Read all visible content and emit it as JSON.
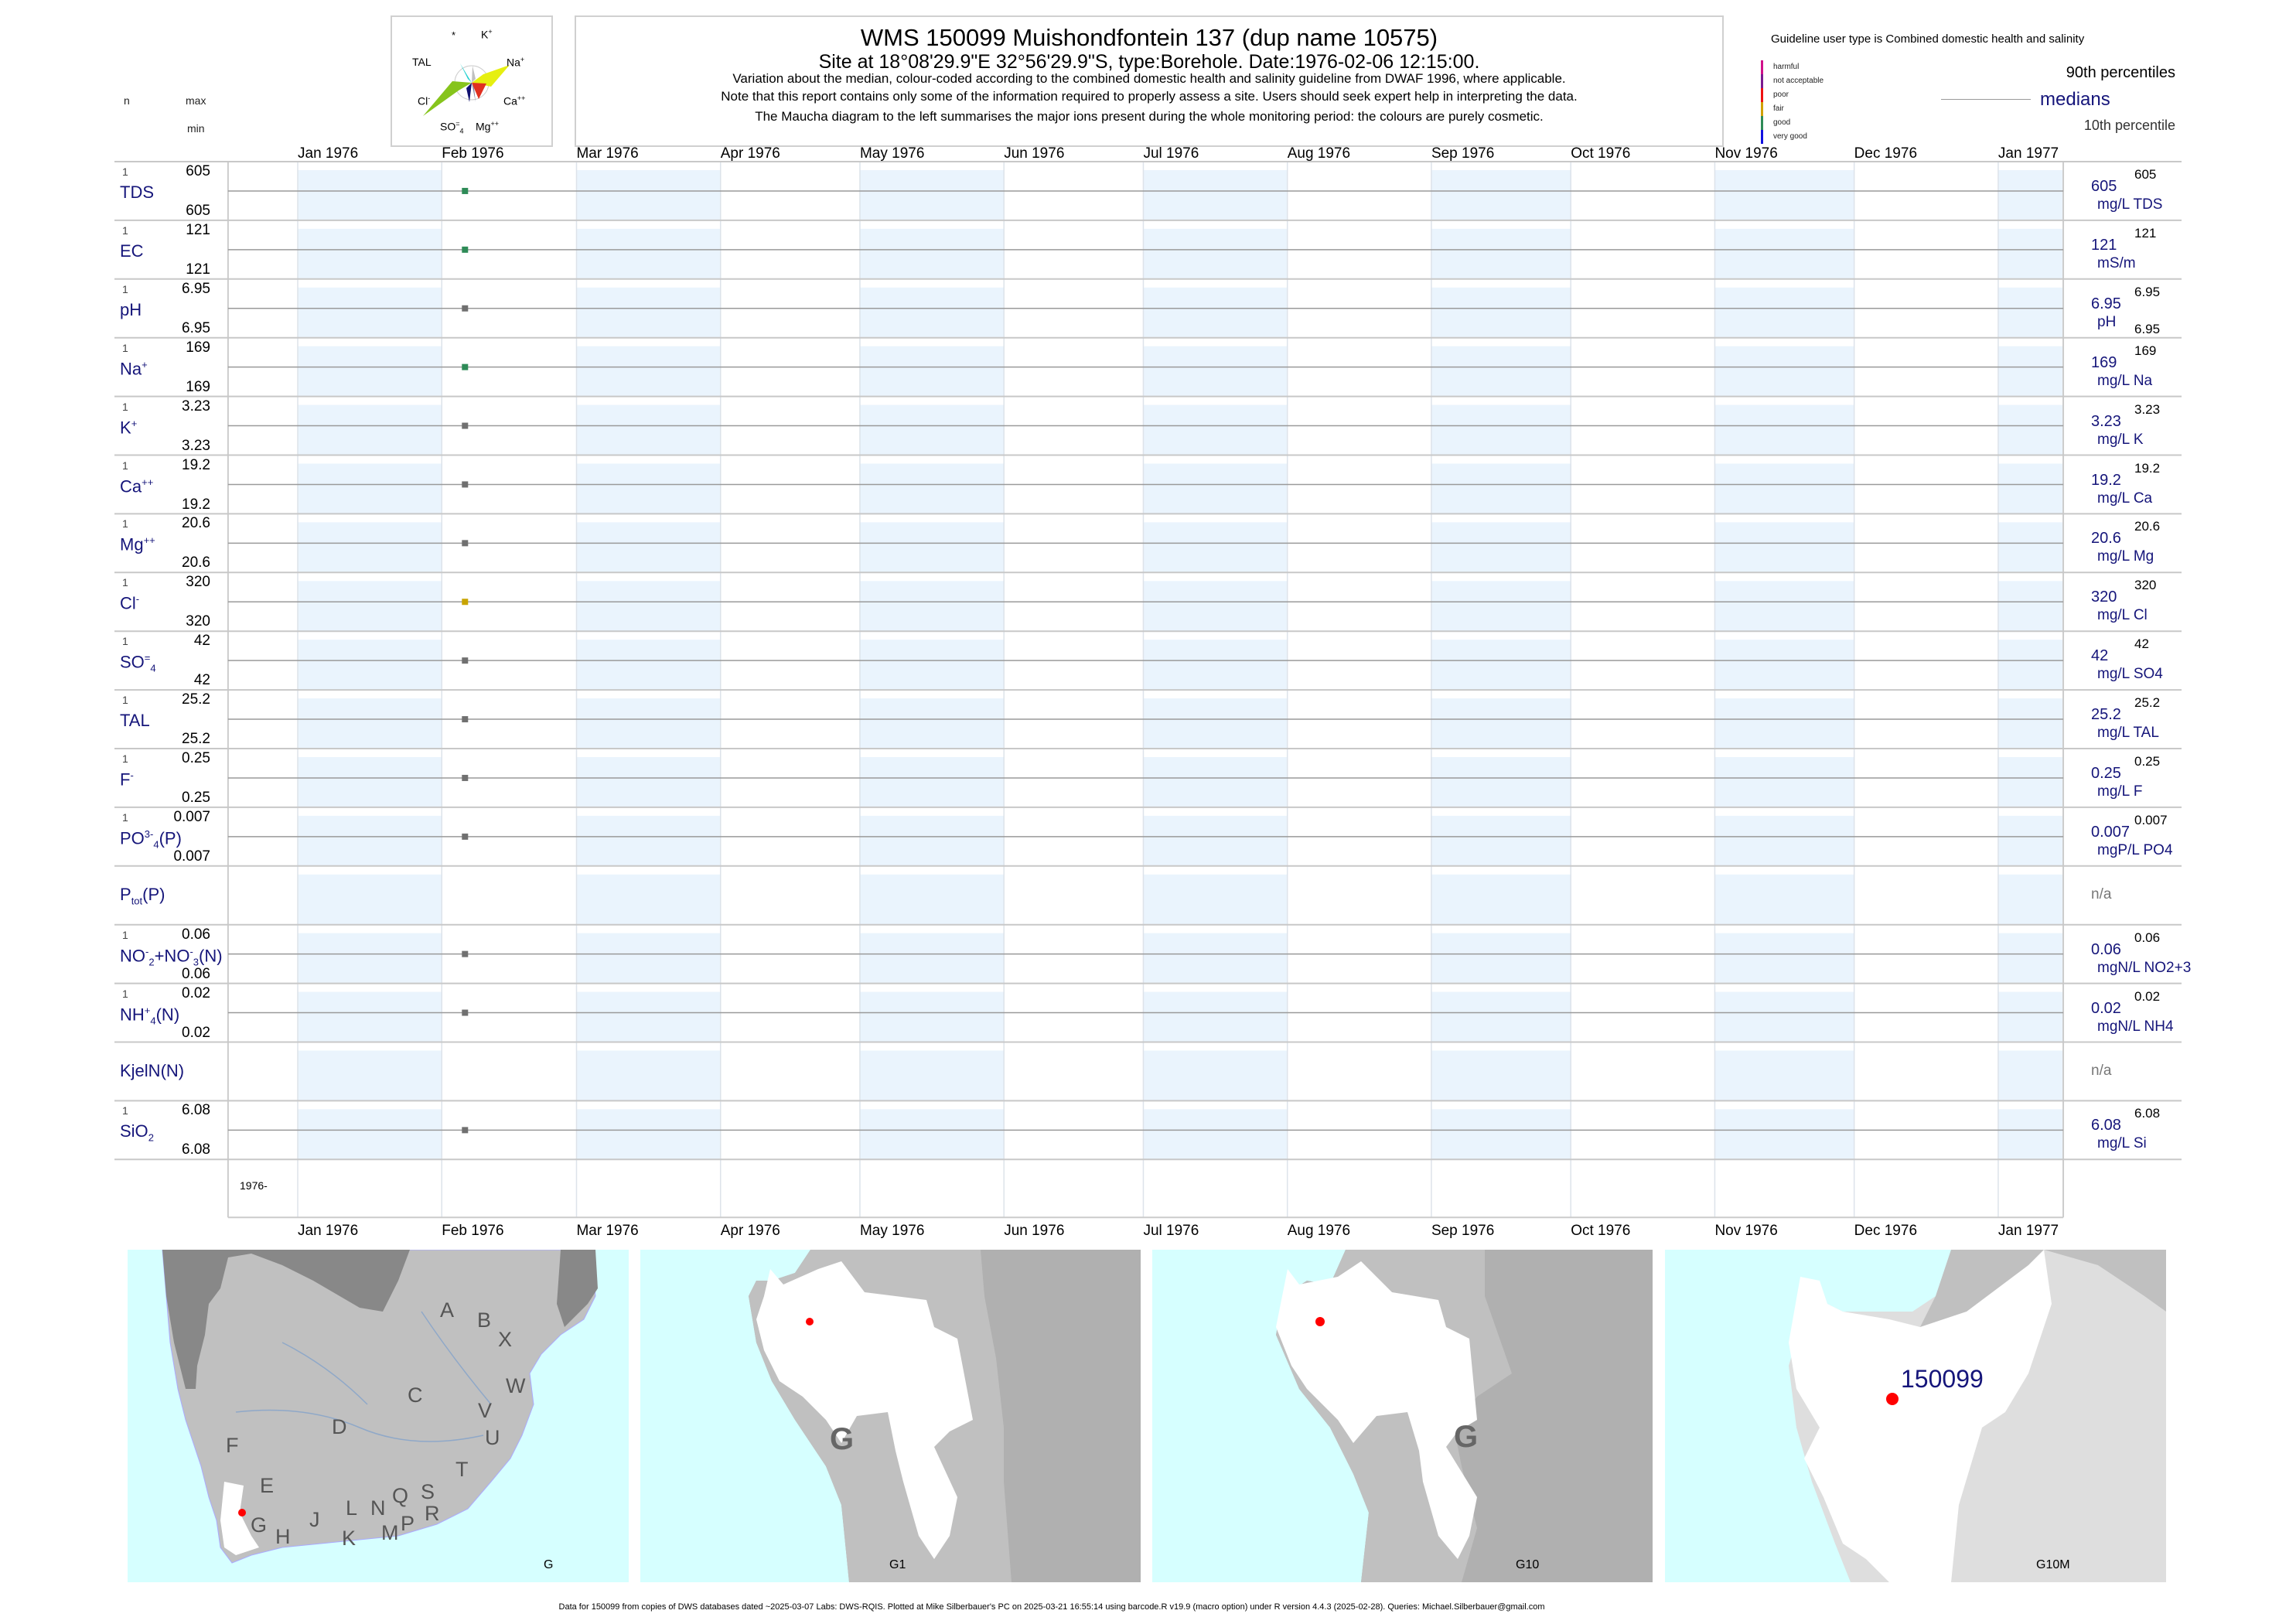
{
  "header": {
    "title": "WMS 150099  Muishondfontein 137 (dup name 10575)",
    "site": "Site at 18°08'29.9\"E 32°56'29.9\"S, type:Borehole. Date:1976-02-06 12:15:00.",
    "note1": "Variation about the median,  colour-coded according to the combined domestic health and salinity guideline from DWAF 1996, where applicable.",
    "note2": "Note that this report contains only some of the information required to properly assess a site. Users should seek expert help in interpreting the data.",
    "note3": "The Maucha diagram to the left summarises the major ions present during the whole monitoring period: the colours are purely cosmetic.",
    "col_n": "n",
    "col_max": "max",
    "col_min": "min"
  },
  "maucha": {
    "labels": {
      "star": "*",
      "k": "K",
      "k_sup": "+",
      "tal": "TAL",
      "na": "Na",
      "na_sup": "+",
      "cl": "Cl",
      "cl_sup": "-",
      "ca": "Ca",
      "ca_sup": "++",
      "so4": "SO",
      "so4_sub": "4",
      "so4_sup": "=",
      "mg": "Mg",
      "mg_sup": "++"
    },
    "colors": {
      "na": "#e6ef10",
      "cl": "#86c41c",
      "ca": "#e03020",
      "so4": "#101070",
      "tal": "#20d0d0",
      "k": "#c0c0c0",
      "mg": "#8080a0"
    }
  },
  "legend": {
    "guideline": "Guideline user type is Combined domestic health and salinity",
    "classes": [
      {
        "label": "harmful",
        "color": "#d0108a"
      },
      {
        "label": "not acceptable",
        "color": "#7a1a90"
      },
      {
        "label": "poor",
        "color": "#ee1010"
      },
      {
        "label": "fair",
        "color": "#d0a000"
      },
      {
        "label": "good",
        "color": "#2e8b57"
      },
      {
        "label": "very good",
        "color": "#1010e0"
      }
    ],
    "p90": "90th percentiles",
    "medians": "medians",
    "p10": "10th percentile"
  },
  "chart_data": {
    "type": "scatter",
    "x_type": "date",
    "xlim": [
      "1975-12-17",
      "1977-01-15"
    ],
    "x_ticks": [
      {
        "date": "1976-01-01",
        "label": "Jan 1976"
      },
      {
        "date": "1976-02-01",
        "label": "Feb 1976"
      },
      {
        "date": "1976-03-01",
        "label": "Mar 1976"
      },
      {
        "date": "1976-04-01",
        "label": "Apr 1976"
      },
      {
        "date": "1976-05-01",
        "label": "May 1976"
      },
      {
        "date": "1976-06-01",
        "label": "Jun 1976"
      },
      {
        "date": "1976-07-01",
        "label": "Jul 1976"
      },
      {
        "date": "1976-08-01",
        "label": "Aug 1976"
      },
      {
        "date": "1976-09-01",
        "label": "Sep 1976"
      },
      {
        "date": "1976-10-01",
        "label": "Oct 1976"
      },
      {
        "date": "1976-11-01",
        "label": "Nov 1976"
      },
      {
        "date": "1976-12-01",
        "label": "Dec 1976"
      },
      {
        "date": "1977-01-01",
        "label": "Jan 1977"
      }
    ],
    "year_label": "1976-",
    "band_color": "#eaf4fd",
    "sample_date": "1976-02-06",
    "rows": [
      {
        "label": [
          {
            "t": "TDS"
          }
        ],
        "n": "1",
        "max": "605",
        "min": "605",
        "median": "605",
        "unit": "mg/L TDS",
        "p90": "605",
        "quality": "good"
      },
      {
        "label": [
          {
            "t": "EC"
          }
        ],
        "n": "1",
        "max": "121",
        "min": "121",
        "median": "121",
        "unit": "mS/m",
        "p90": "121",
        "quality": "good"
      },
      {
        "label": [
          {
            "t": "pH"
          }
        ],
        "n": "1",
        "max": "6.95",
        "min": "6.95",
        "median": "6.95",
        "unit": "pH",
        "p90": "6.95",
        "p10": "6.95",
        "quality": "none"
      },
      {
        "label": [
          {
            "t": "Na"
          },
          {
            "t": "+",
            "sup": true
          }
        ],
        "n": "1",
        "max": "169",
        "min": "169",
        "median": "169",
        "unit": "mg/L Na",
        "p90": "169",
        "quality": "good"
      },
      {
        "label": [
          {
            "t": "K"
          },
          {
            "t": "+",
            "sup": true
          }
        ],
        "n": "1",
        "max": "3.23",
        "min": "3.23",
        "median": "3.23",
        "unit": "mg/L K",
        "p90": "3.23",
        "quality": "none"
      },
      {
        "label": [
          {
            "t": "Ca"
          },
          {
            "t": "++",
            "sup": true
          }
        ],
        "n": "1",
        "max": "19.2",
        "min": "19.2",
        "median": "19.2",
        "unit": "mg/L Ca",
        "p90": "19.2",
        "quality": "none"
      },
      {
        "label": [
          {
            "t": "Mg"
          },
          {
            "t": "++",
            "sup": true
          }
        ],
        "n": "1",
        "max": "20.6",
        "min": "20.6",
        "median": "20.6",
        "unit": "mg/L Mg",
        "p90": "20.6",
        "quality": "none"
      },
      {
        "label": [
          {
            "t": "Cl"
          },
          {
            "t": "-",
            "sup": true
          }
        ],
        "n": "1",
        "max": "320",
        "min": "320",
        "median": "320",
        "unit": "mg/L Cl",
        "p90": "320",
        "quality": "fair"
      },
      {
        "label": [
          {
            "t": "SO"
          },
          {
            "t": "=",
            "sup": true
          },
          {
            "t": "4",
            "sub": true
          }
        ],
        "n": "1",
        "max": "42",
        "min": "42",
        "median": "42",
        "unit": "mg/L SO4",
        "p90": "42",
        "quality": "none"
      },
      {
        "label": [
          {
            "t": "TAL"
          }
        ],
        "n": "1",
        "max": "25.2",
        "min": "25.2",
        "median": "25.2",
        "unit": "mg/L TAL",
        "p90": "25.2",
        "quality": "none"
      },
      {
        "label": [
          {
            "t": "F"
          },
          {
            "t": "-",
            "sup": true
          }
        ],
        "n": "1",
        "max": "0.25",
        "min": "0.25",
        "median": "0.25",
        "unit": "mg/L F",
        "p90": "0.25",
        "quality": "none"
      },
      {
        "label": [
          {
            "t": "PO"
          },
          {
            "t": "3-",
            "sup": true
          },
          {
            "t": "4",
            "sub": true
          },
          {
            "t": "(P)"
          }
        ],
        "n": "1",
        "max": "0.007",
        "min": "0.007",
        "median": "0.007",
        "unit": "mgP/L PO4",
        "p90": "0.007",
        "quality": "none"
      },
      {
        "label": [
          {
            "t": "P"
          },
          {
            "t": "tot",
            "sub": true
          },
          {
            "t": "(P)"
          }
        ],
        "na": "n/a"
      },
      {
        "label": [
          {
            "t": "NO"
          },
          {
            "t": "-",
            "sup": true
          },
          {
            "t": "2",
            "sub": true
          },
          {
            "t": "+NO"
          },
          {
            "t": "-",
            "sup": true
          },
          {
            "t": "3",
            "sub": true
          },
          {
            "t": "(N)"
          }
        ],
        "n": "1",
        "max": "0.06",
        "min": "0.06",
        "median": "0.06",
        "unit": "mgN/L NO2+3",
        "p90": "0.06",
        "quality": "none"
      },
      {
        "label": [
          {
            "t": "NH"
          },
          {
            "t": "+",
            "sup": true
          },
          {
            "t": "4",
            "sub": true
          },
          {
            "t": "(N)"
          }
        ],
        "n": "1",
        "max": "0.02",
        "min": "0.02",
        "median": "0.02",
        "unit": "mgN/L NH4",
        "p90": "0.02",
        "quality": "none"
      },
      {
        "label": [
          {
            "t": "KjelN(N)"
          }
        ],
        "na": "n/a"
      },
      {
        "label": [
          {
            "t": "SiO"
          },
          {
            "t": "2",
            "sub": true
          }
        ],
        "n": "1",
        "max": "6.08",
        "min": "6.08",
        "median": "6.08",
        "unit": "mg/L Si",
        "p90": "6.08",
        "quality": "none"
      }
    ],
    "quality_colors": {
      "good": "#2e8b57",
      "fair": "#c8a400",
      "none": "#707070"
    }
  },
  "maps": [
    {
      "caption": "G",
      "letters": [
        "A",
        "B",
        "X",
        "W",
        "C",
        "V",
        "D",
        "U",
        "F",
        "T",
        "E",
        "S",
        "Q",
        "L",
        "N",
        "R",
        "J",
        "P",
        "G",
        "M",
        "K",
        "H"
      ]
    },
    {
      "caption": "G1",
      "region": "G"
    },
    {
      "caption": "G10",
      "region": "G"
    },
    {
      "caption": "G10M",
      "station": "150099"
    }
  ],
  "footer": "Data for 150099 from copies of DWS databases dated ~2025-03-07 Labs: DWS-RQIS. Plotted at Mike Silberbauer's PC on 2025-03-21 16:55:14 using barcode.R v19.9 (macro option) under R version 4.4.3 (2025-02-28). Queries: Michael.Silberbauer@gmail.com"
}
